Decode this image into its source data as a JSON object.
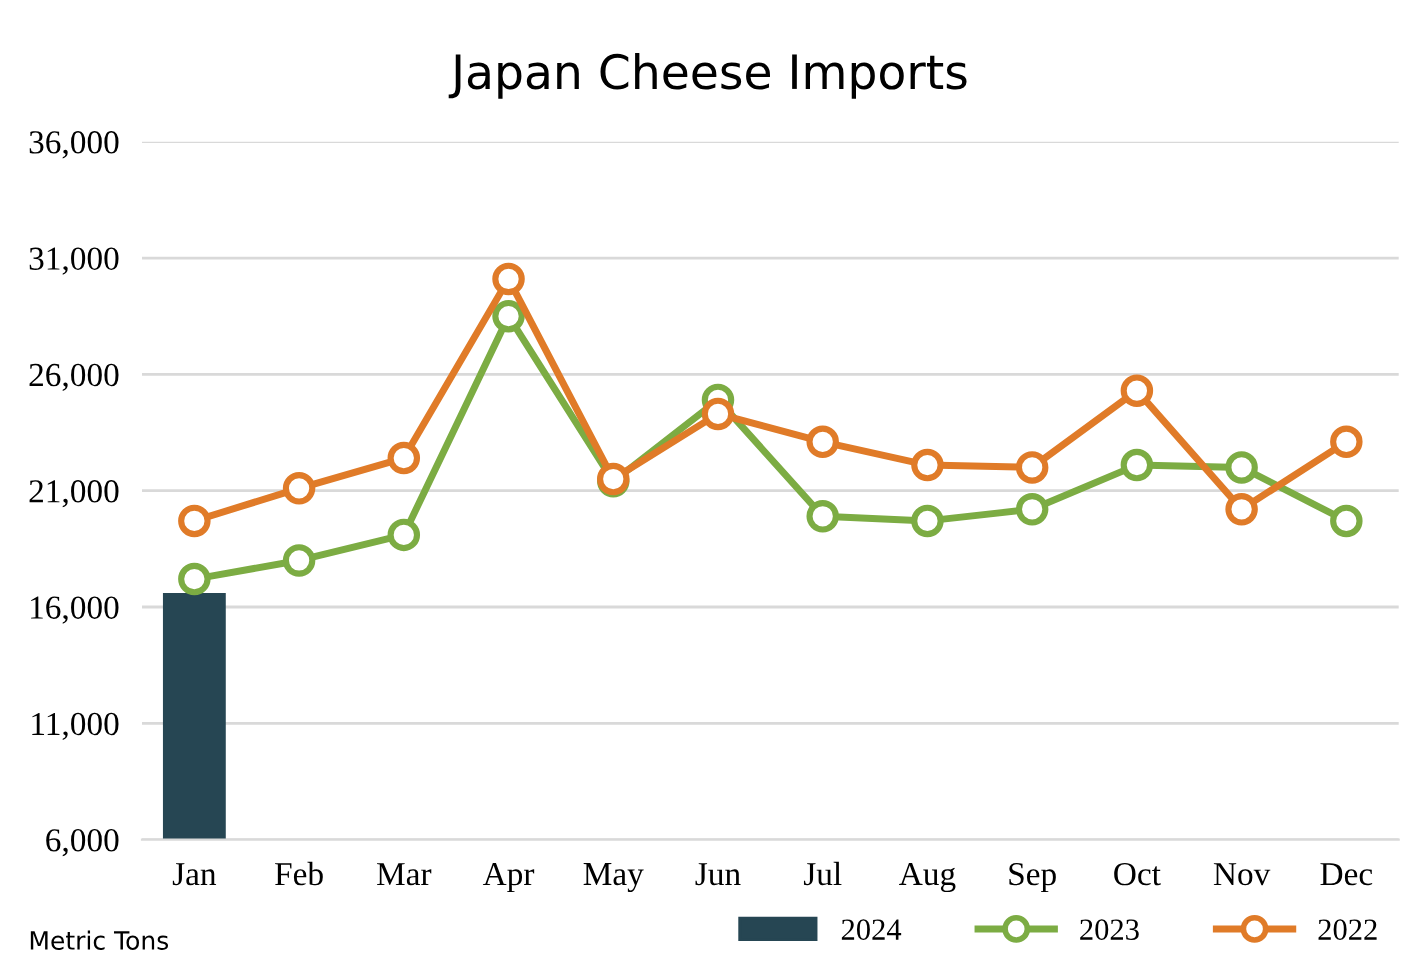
{
  "chart_data": {
    "type": "line",
    "title": "Japan Cheese Imports",
    "categories": [
      "Jan",
      "Feb",
      "Mar",
      "Apr",
      "May",
      "Jun",
      "Jul",
      "Aug",
      "Sep",
      "Oct",
      "Nov",
      "Dec"
    ],
    "series": [
      {
        "name": "2024",
        "type": "bar",
        "color": "#264653",
        "values": [
          16600,
          null,
          null,
          null,
          null,
          null,
          null,
          null,
          null,
          null,
          null,
          null
        ]
      },
      {
        "name": "2023",
        "color": "#7cac43",
        "values": [
          17200,
          18000,
          19100,
          28500,
          21400,
          24900,
          19900,
          19700,
          20200,
          22100,
          22000,
          19700
        ]
      },
      {
        "name": "2022",
        "color": "#e07b28",
        "values": [
          19700,
          21100,
          22400,
          30100,
          21500,
          24300,
          23100,
          22100,
          22000,
          25300,
          20200,
          23100
        ]
      }
    ],
    "ylim": [
      6000,
      36000
    ],
    "yticks": [
      {
        "value": 6000,
        "label": "6,000"
      },
      {
        "value": 11000,
        "label": "11,000"
      },
      {
        "value": 16000,
        "label": "16,000"
      },
      {
        "value": 21000,
        "label": "21,000"
      },
      {
        "value": 26000,
        "label": "26,000"
      },
      {
        "value": 31000,
        "label": "31,000"
      },
      {
        "value": 36000,
        "label": "36,000"
      }
    ],
    "grid": "y",
    "legend": "bottom right",
    "marker": "circle",
    "line_style": "solid",
    "annotations": [
      "Metric Tons"
    ]
  }
}
